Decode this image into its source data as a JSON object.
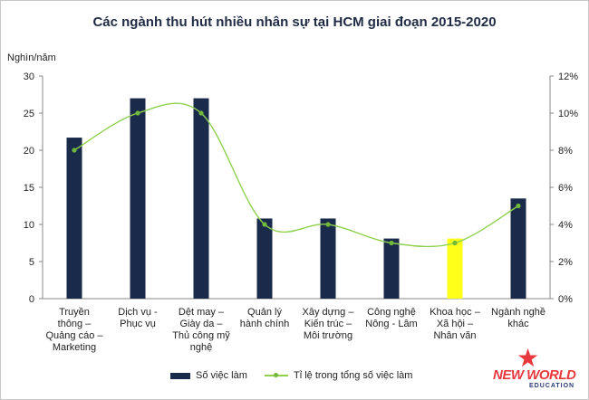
{
  "title": "Các ngành thu hút nhiều nhân sự tại HCM giai đoạn 2015-2020",
  "y_axis_label": "Nghìn/năm",
  "legend": {
    "bar_label": "Số việc làm",
    "line_label": "Tỉ lệ trong tổng số việc làm"
  },
  "logo": {
    "text": "NEW WORLD",
    "subtext": "EDUCATION"
  },
  "colors": {
    "bar": "#1a2a4a",
    "highlight_bar": "#ffff1a",
    "line": "#8fd14f",
    "marker": "#6fb83a"
  },
  "chart_data": {
    "type": "bar",
    "title": "Các ngành thu hút nhiều nhân sự tại HCM giai đoạn 2015-2020",
    "ylabel": "Nghìn/năm",
    "ylim": [
      0,
      30
    ],
    "y2lim": [
      0,
      12
    ],
    "y_ticks": [
      "0",
      "5",
      "10",
      "15",
      "20",
      "25",
      "30"
    ],
    "y2_ticks": [
      "0%",
      "2%",
      "4%",
      "6%",
      "8%",
      "10%",
      "12%"
    ],
    "grid": false,
    "legend_position": "bottom",
    "categories": [
      [
        "Truyền",
        "thông –",
        "Quảng cáo –",
        "Marketing"
      ],
      [
        "Dịch vụ -",
        "Phục vụ"
      ],
      [
        "Dệt may –",
        "Giày da –",
        "Thủ công mỹ",
        "nghệ"
      ],
      [
        "Quản lý",
        "hành chính"
      ],
      [
        "Xây dựng –",
        "Kiến trúc –",
        "Môi trường"
      ],
      [
        "Công nghệ",
        "Nông - Lâm"
      ],
      [
        "Khoa học –",
        "Xã hội –",
        "Nhân văn"
      ],
      [
        "Ngành nghề",
        "khác"
      ]
    ],
    "highlight_index": 6,
    "series": [
      {
        "name": "Số việc làm",
        "type": "bar",
        "axis": "left",
        "values": [
          21.7,
          27,
          27,
          10.8,
          10.8,
          8.1,
          8.1,
          13.5
        ]
      },
      {
        "name": "Tỉ lệ trong tổng số việc làm",
        "type": "line",
        "axis": "right",
        "values": [
          8,
          10,
          10,
          4,
          4,
          3,
          3,
          5
        ]
      }
    ]
  }
}
